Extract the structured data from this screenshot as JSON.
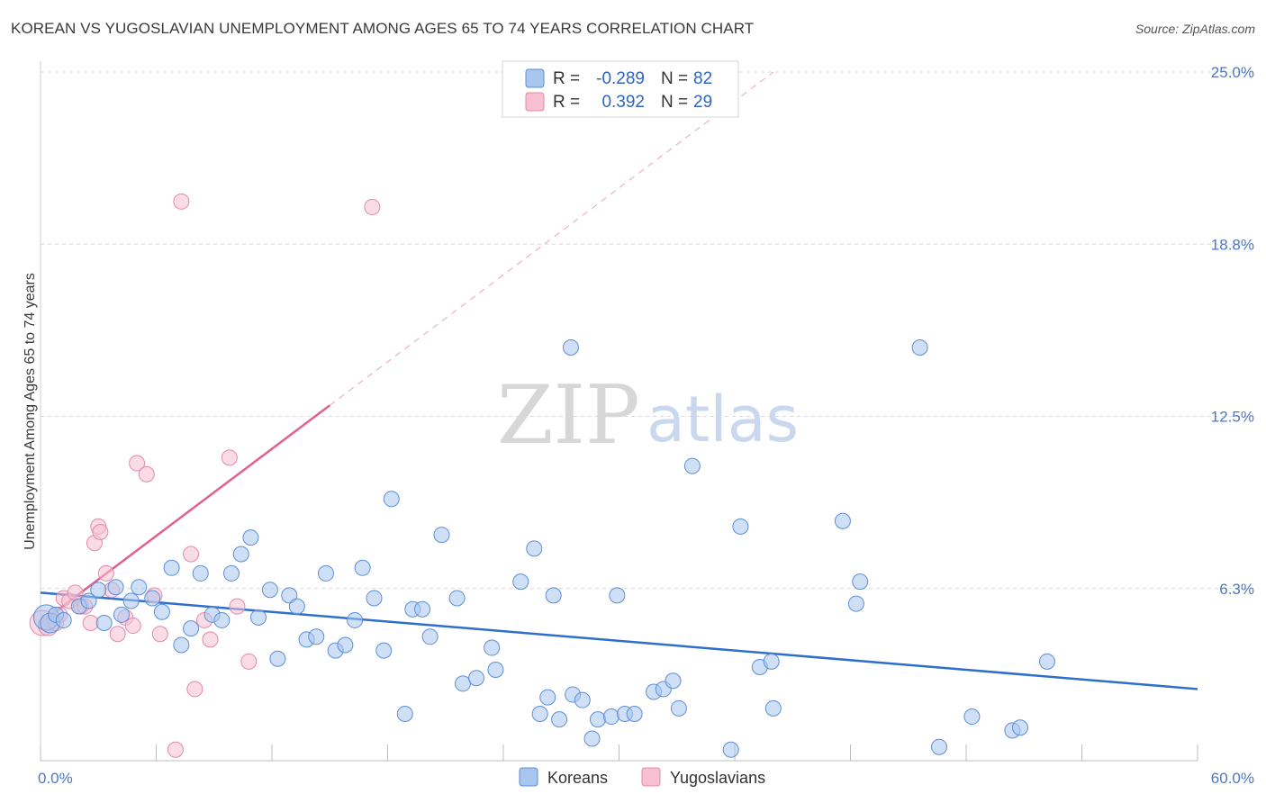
{
  "title": "KOREAN VS YUGOSLAVIAN UNEMPLOYMENT AMONG AGES 65 TO 74 YEARS CORRELATION CHART",
  "source": "Source: ZipAtlas.com",
  "watermark": {
    "zip": "ZIP",
    "atlas": "atlas"
  },
  "colors": {
    "korean_fill": "#a8c6ee",
    "korean_stroke": "#5d8fd6",
    "korean_line": "#2f6fcc",
    "yugo_fill": "#f6bfd2",
    "yugo_stroke": "#e589aa",
    "yugo_line": "#e0618d",
    "grid": "#d9d9d9",
    "tick_text": "#4a78c8"
  },
  "legend": {
    "rows": [
      {
        "r_label": "R =",
        "r_value": "-0.289",
        "n_label": "N =",
        "n_value": "82",
        "series": "Koreans"
      },
      {
        "r_label": "R =",
        "r_value": "0.392",
        "n_label": "N =",
        "n_value": "29",
        "series": "Yugoslavians"
      }
    ]
  },
  "chart_data": {
    "type": "scatter",
    "title": "KOREAN VS YUGOSLAVIAN UNEMPLOYMENT AMONG AGES 65 TO 74 YEARS CORRELATION CHART",
    "xlabel": "",
    "ylabel": "Unemployment Among Ages 65 to 74 years",
    "xlim": [
      0,
      60
    ],
    "ylim": [
      0,
      25
    ],
    "x_tick_labels": [
      "0.0%",
      "60.0%"
    ],
    "y_tick_labels": [
      "6.3%",
      "12.5%",
      "18.8%",
      "25.0%"
    ],
    "y_tick_values": [
      6.25,
      12.5,
      18.75,
      25.0
    ],
    "series": [
      {
        "name": "Koreans",
        "trend": {
          "x": [
            0,
            60
          ],
          "y": [
            6.1,
            2.6
          ],
          "dashed_extension": false
        },
        "points": [
          {
            "x": 0.3,
            "y": 5.2,
            "s": 3
          },
          {
            "x": 0.5,
            "y": 5.0,
            "s": 2
          },
          {
            "x": 0.8,
            "y": 5.3,
            "s": 1
          },
          {
            "x": 1.2,
            "y": 5.1,
            "s": 1
          },
          {
            "x": 2.0,
            "y": 5.6,
            "s": 1
          },
          {
            "x": 2.5,
            "y": 5.8,
            "s": 1
          },
          {
            "x": 3.0,
            "y": 6.2,
            "s": 1
          },
          {
            "x": 3.3,
            "y": 5.0,
            "s": 1
          },
          {
            "x": 3.9,
            "y": 6.3,
            "s": 1
          },
          {
            "x": 4.2,
            "y": 5.3,
            "s": 1
          },
          {
            "x": 4.7,
            "y": 5.8,
            "s": 1
          },
          {
            "x": 5.1,
            "y": 6.3,
            "s": 1
          },
          {
            "x": 5.8,
            "y": 5.9,
            "s": 1
          },
          {
            "x": 6.3,
            "y": 5.4,
            "s": 1
          },
          {
            "x": 6.8,
            "y": 7.0,
            "s": 1
          },
          {
            "x": 7.3,
            "y": 4.2,
            "s": 1
          },
          {
            "x": 7.8,
            "y": 4.8,
            "s": 1
          },
          {
            "x": 8.3,
            "y": 6.8,
            "s": 1
          },
          {
            "x": 8.9,
            "y": 5.3,
            "s": 1
          },
          {
            "x": 9.4,
            "y": 5.1,
            "s": 1
          },
          {
            "x": 9.9,
            "y": 6.8,
            "s": 1
          },
          {
            "x": 10.4,
            "y": 7.5,
            "s": 1
          },
          {
            "x": 10.9,
            "y": 8.1,
            "s": 1
          },
          {
            "x": 11.3,
            "y": 5.2,
            "s": 1
          },
          {
            "x": 11.9,
            "y": 6.2,
            "s": 1
          },
          {
            "x": 12.3,
            "y": 3.7,
            "s": 1
          },
          {
            "x": 12.9,
            "y": 6.0,
            "s": 1
          },
          {
            "x": 13.3,
            "y": 5.6,
            "s": 1
          },
          {
            "x": 13.8,
            "y": 4.4,
            "s": 1
          },
          {
            "x": 14.3,
            "y": 4.5,
            "s": 1
          },
          {
            "x": 14.8,
            "y": 6.8,
            "s": 1
          },
          {
            "x": 15.3,
            "y": 4.0,
            "s": 1
          },
          {
            "x": 15.8,
            "y": 4.2,
            "s": 1
          },
          {
            "x": 16.3,
            "y": 5.1,
            "s": 1
          },
          {
            "x": 16.7,
            "y": 7.0,
            "s": 1
          },
          {
            "x": 17.3,
            "y": 5.9,
            "s": 1
          },
          {
            "x": 17.8,
            "y": 4.0,
            "s": 1
          },
          {
            "x": 18.2,
            "y": 9.5,
            "s": 1
          },
          {
            "x": 18.9,
            "y": 1.7,
            "s": 1
          },
          {
            "x": 19.3,
            "y": 5.5,
            "s": 1
          },
          {
            "x": 19.8,
            "y": 5.5,
            "s": 1
          },
          {
            "x": 20.2,
            "y": 4.5,
            "s": 1
          },
          {
            "x": 20.8,
            "y": 8.2,
            "s": 1
          },
          {
            "x": 21.6,
            "y": 5.9,
            "s": 1
          },
          {
            "x": 21.9,
            "y": 2.8,
            "s": 1
          },
          {
            "x": 22.6,
            "y": 3.0,
            "s": 1
          },
          {
            "x": 23.4,
            "y": 4.1,
            "s": 1
          },
          {
            "x": 23.6,
            "y": 3.3,
            "s": 1
          },
          {
            "x": 24.9,
            "y": 6.5,
            "s": 1
          },
          {
            "x": 25.6,
            "y": 7.7,
            "s": 1
          },
          {
            "x": 25.9,
            "y": 1.7,
            "s": 1
          },
          {
            "x": 26.3,
            "y": 2.3,
            "s": 1
          },
          {
            "x": 26.6,
            "y": 6.0,
            "s": 1
          },
          {
            "x": 26.9,
            "y": 1.5,
            "s": 1
          },
          {
            "x": 27.6,
            "y": 2.4,
            "s": 1
          },
          {
            "x": 28.1,
            "y": 2.2,
            "s": 1
          },
          {
            "x": 28.6,
            "y": 0.8,
            "s": 1
          },
          {
            "x": 28.9,
            "y": 1.5,
            "s": 1
          },
          {
            "x": 29.6,
            "y": 1.6,
            "s": 1
          },
          {
            "x": 29.9,
            "y": 6.0,
            "s": 1
          },
          {
            "x": 30.3,
            "y": 1.7,
            "s": 1
          },
          {
            "x": 30.8,
            "y": 1.7,
            "s": 1
          },
          {
            "x": 31.8,
            "y": 2.5,
            "s": 1
          },
          {
            "x": 32.3,
            "y": 2.6,
            "s": 1
          },
          {
            "x": 32.8,
            "y": 2.9,
            "s": 1
          },
          {
            "x": 33.1,
            "y": 1.9,
            "s": 1
          },
          {
            "x": 33.8,
            "y": 10.7,
            "s": 1
          },
          {
            "x": 35.8,
            "y": 0.4,
            "s": 1
          },
          {
            "x": 36.3,
            "y": 8.5,
            "s": 1
          },
          {
            "x": 37.3,
            "y": 3.4,
            "s": 1
          },
          {
            "x": 37.9,
            "y": 3.6,
            "s": 1
          },
          {
            "x": 38.0,
            "y": 1.9,
            "s": 1
          },
          {
            "x": 41.6,
            "y": 8.7,
            "s": 1
          },
          {
            "x": 42.3,
            "y": 5.7,
            "s": 1
          },
          {
            "x": 42.5,
            "y": 6.5,
            "s": 1
          },
          {
            "x": 27.5,
            "y": 15.0,
            "s": 1
          },
          {
            "x": 45.6,
            "y": 15.0,
            "s": 1
          },
          {
            "x": 46.6,
            "y": 0.5,
            "s": 1
          },
          {
            "x": 48.3,
            "y": 1.6,
            "s": 1
          },
          {
            "x": 50.4,
            "y": 1.1,
            "s": 1
          },
          {
            "x": 50.8,
            "y": 1.2,
            "s": 1
          },
          {
            "x": 52.2,
            "y": 3.6,
            "s": 1
          }
        ]
      },
      {
        "name": "Yugoslavians",
        "trend": {
          "x": [
            0,
            15
          ],
          "y": [
            5.0,
            12.9
          ],
          "dashed_extension": true,
          "dashed_to": {
            "x": 38,
            "y": 25
          }
        },
        "points": [
          {
            "x": 0.1,
            "y": 5.0,
            "s": 3
          },
          {
            "x": 0.4,
            "y": 4.9,
            "s": 2
          },
          {
            "x": 0.8,
            "y": 5.0,
            "s": 1
          },
          {
            "x": 1.0,
            "y": 5.3,
            "s": 1
          },
          {
            "x": 1.2,
            "y": 5.9,
            "s": 1
          },
          {
            "x": 1.5,
            "y": 5.8,
            "s": 1
          },
          {
            "x": 1.8,
            "y": 6.1,
            "s": 1
          },
          {
            "x": 2.1,
            "y": 5.6,
            "s": 1
          },
          {
            "x": 2.3,
            "y": 5.6,
            "s": 1
          },
          {
            "x": 2.6,
            "y": 5.0,
            "s": 1
          },
          {
            "x": 2.8,
            "y": 7.9,
            "s": 1
          },
          {
            "x": 3.0,
            "y": 8.5,
            "s": 1
          },
          {
            "x": 3.1,
            "y": 8.3,
            "s": 1
          },
          {
            "x": 3.4,
            "y": 6.8,
            "s": 1
          },
          {
            "x": 3.7,
            "y": 6.2,
            "s": 1
          },
          {
            "x": 4.0,
            "y": 4.6,
            "s": 1
          },
          {
            "x": 4.4,
            "y": 5.2,
            "s": 1
          },
          {
            "x": 4.8,
            "y": 4.9,
            "s": 1
          },
          {
            "x": 5.0,
            "y": 10.8,
            "s": 1
          },
          {
            "x": 5.5,
            "y": 10.4,
            "s": 1
          },
          {
            "x": 5.9,
            "y": 6.0,
            "s": 1
          },
          {
            "x": 6.2,
            "y": 4.6,
            "s": 1
          },
          {
            "x": 7.0,
            "y": 0.4,
            "s": 1
          },
          {
            "x": 7.3,
            "y": 20.3,
            "s": 1
          },
          {
            "x": 7.8,
            "y": 7.5,
            "s": 1
          },
          {
            "x": 8.0,
            "y": 2.6,
            "s": 1
          },
          {
            "x": 8.5,
            "y": 5.1,
            "s": 1
          },
          {
            "x": 8.8,
            "y": 4.4,
            "s": 1
          },
          {
            "x": 9.8,
            "y": 11.0,
            "s": 1
          },
          {
            "x": 10.2,
            "y": 5.6,
            "s": 1
          },
          {
            "x": 10.8,
            "y": 3.6,
            "s": 1
          },
          {
            "x": 17.2,
            "y": 20.1,
            "s": 1
          }
        ]
      }
    ]
  },
  "bottom_legend": [
    {
      "label": "Koreans"
    },
    {
      "label": "Yugoslavians"
    }
  ]
}
